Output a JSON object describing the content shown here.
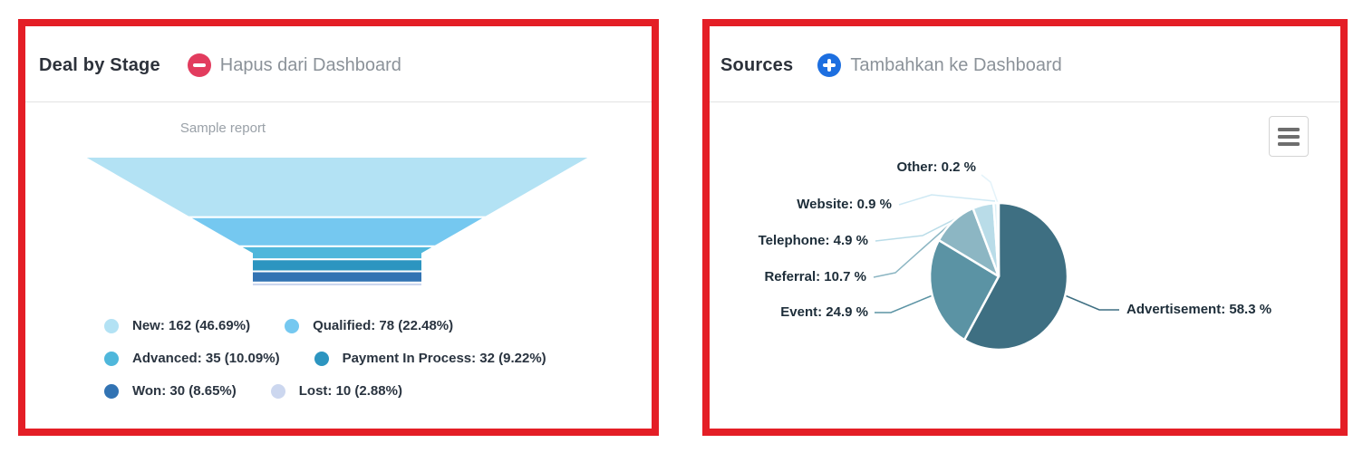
{
  "left_panel": {
    "title": "Deal by Stage",
    "action_label": "Hapus dari Dashboard",
    "action_color": "#e23c5e",
    "chart_data": {
      "type": "funnel",
      "title": "Sample report",
      "stages": [
        {
          "label": "New",
          "value": 162,
          "pct": 46.69,
          "color": "#b3e2f4"
        },
        {
          "label": "Qualified",
          "value": 78,
          "pct": 22.48,
          "color": "#75c8f0"
        },
        {
          "label": "Advanced",
          "value": 35,
          "pct": 10.09,
          "color": "#4fb7db"
        },
        {
          "label": "Payment In Process",
          "value": 32,
          "pct": 9.22,
          "color": "#2c95c0"
        },
        {
          "label": "Won",
          "value": 30,
          "pct": 8.65,
          "color": "#3273b3"
        },
        {
          "label": "Lost",
          "value": 10,
          "pct": 2.88,
          "color": "#ccd7ef"
        }
      ],
      "legend_display": [
        "New: 162 (46.69%)",
        "Qualified: 78 (22.48%)",
        "Advanced: 35 (10.09%)",
        "Payment In Process: 32 (9.22%)",
        "Won: 30 (8.65%)",
        "Lost: 10 (2.88%)"
      ],
      "legend_position": "bottom"
    }
  },
  "right_panel": {
    "title": "Sources",
    "action_label": "Tambahkan ke Dashboard",
    "action_color": "#1d6fe0",
    "menu_icon": "hamburger-menu-icon",
    "chart_data": {
      "type": "pie",
      "start_angle_deg": 0,
      "direction": "clockwise",
      "slices": [
        {
          "label": "Advertisement",
          "pct": 58.3,
          "color": "#3e6f82"
        },
        {
          "label": "Event",
          "pct": 24.9,
          "color": "#5b93a4"
        },
        {
          "label": "Referral",
          "pct": 10.7,
          "color": "#8cb6c3"
        },
        {
          "label": "Telephone",
          "pct": 4.9,
          "color": "#b9dce8"
        },
        {
          "label": "Website",
          "pct": 0.9,
          "color": "#d9eef6"
        },
        {
          "label": "Other",
          "pct": 0.2,
          "color": "#eef8fc"
        }
      ],
      "labels_display": [
        "Advertisement: 58.3 %",
        "Event: 24.9 %",
        "Referral: 10.7 %",
        "Telephone: 4.9 %",
        "Website: 0.9 %",
        "Other: 0.2 %"
      ]
    }
  }
}
